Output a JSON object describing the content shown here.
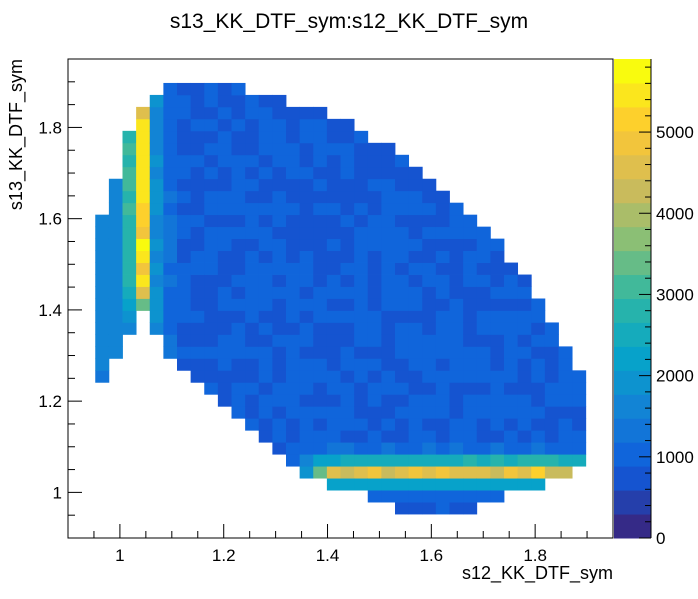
{
  "chart_data": {
    "type": "heatmap",
    "title": "s13_KK_DTF_sym:s12_KK_DTF_sym",
    "xlabel": "s12_KK_DTF_sym",
    "ylabel": "s13_KK_DTF_sym",
    "xlim": [
      0.9,
      1.95
    ],
    "ylim": [
      0.9,
      1.95
    ],
    "x_ticks": [
      "1",
      "1.2",
      "1.4",
      "1.6",
      "1.8"
    ],
    "y_ticks": [
      "1",
      "1.2",
      "1.4",
      "1.6",
      "1.8"
    ],
    "z_ticks": [
      "0",
      "1000",
      "2000",
      "3000",
      "4000",
      "5000"
    ],
    "zlim": [
      0,
      5900
    ],
    "bins": 40,
    "bin_width": 0.02625,
    "colormap": "kBird",
    "region_description": "Dalitz-like region; densest bands near s12≈1.04 and s13≈1.04",
    "content_summary": {
      "bulk_level": 900,
      "vertical_band": {
        "x": 1.04,
        "y_range": [
          1.43,
          1.84
        ],
        "peak": 5900
      },
      "horizontal_band": {
        "y": 1.05,
        "x_range": [
          1.36,
          1.86
        ],
        "peak": 5700
      }
    }
  },
  "stats_box": null
}
